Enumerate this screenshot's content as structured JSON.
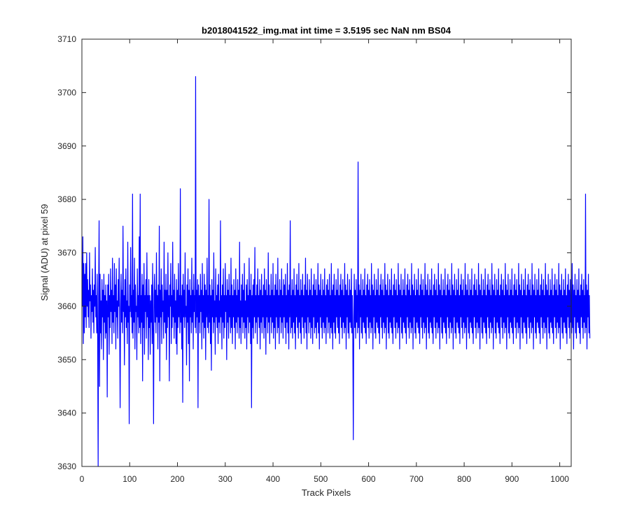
{
  "chart_data": {
    "type": "line",
    "title": "b2018041522_img.mat int time = 3.5195 sec  NaN nm BS04",
    "xlabel": "Track Pixels",
    "ylabel": "Signal (ADU) at pixel 59",
    "xlim": [
      0,
      1024
    ],
    "ylim": [
      3630,
      3710
    ],
    "xticks": [
      0,
      100,
      200,
      300,
      400,
      500,
      600,
      700,
      800,
      900,
      1000
    ],
    "yticks": [
      3630,
      3640,
      3650,
      3660,
      3670,
      3680,
      3690,
      3700,
      3710
    ],
    "grid": false,
    "series": [
      {
        "color": "#0000ff",
        "x_start": 1,
        "x_step": 1,
        "count": 1024,
        "values": [
          3660,
          3673,
          3653,
          3668,
          3655,
          3666,
          3658,
          3668,
          3656,
          3670,
          3660,
          3665,
          3658,
          3663,
          3656,
          3670,
          3661,
          3664,
          3654,
          3662,
          3659,
          3667,
          3657,
          3663,
          3655,
          3664,
          3660,
          3671,
          3658,
          3662,
          3655,
          3666,
          3654,
          3630,
          3662,
          3676,
          3645,
          3666,
          3655,
          3661,
          3652,
          3665,
          3658,
          3663,
          3650,
          3666,
          3657,
          3662,
          3654,
          3664,
          3655,
          3661,
          3643,
          3664,
          3658,
          3666,
          3651,
          3662,
          3656,
          3667,
          3659,
          3663,
          3653,
          3669,
          3657,
          3662,
          3655,
          3668,
          3659,
          3664,
          3652,
          3667,
          3658,
          3661,
          3654,
          3665,
          3660,
          3669,
          3656,
          3641,
          3660,
          3666,
          3657,
          3663,
          3655,
          3675,
          3659,
          3662,
          3649,
          3665,
          3658,
          3667,
          3656,
          3661,
          3653,
          3672,
          3657,
          3660,
          3638,
          3664,
          3659,
          3671,
          3658,
          3662,
          3655,
          3681,
          3654,
          3663,
          3657,
          3669,
          3652,
          3664,
          3659,
          3660,
          3650,
          3667,
          3658,
          3662,
          3655,
          3673,
          3656,
          3681,
          3653,
          3662,
          3657,
          3666,
          3646,
          3664,
          3656,
          3668,
          3651,
          3662,
          3659,
          3665,
          3654,
          3670,
          3658,
          3662,
          3650,
          3665,
          3656,
          3662,
          3651,
          3661,
          3657,
          3664,
          3653,
          3668,
          3655,
          3638,
          3662,
          3666,
          3657,
          3663,
          3655,
          3670,
          3658,
          3662,
          3652,
          3664,
          3657,
          3675,
          3646,
          3663,
          3658,
          3667,
          3653,
          3664,
          3659,
          3661,
          3654,
          3672,
          3657,
          3663,
          3655,
          3666,
          3650,
          3663,
          3656,
          3670,
          3658,
          3662,
          3646,
          3664,
          3660,
          3668,
          3653,
          3662,
          3656,
          3672,
          3658,
          3663,
          3654,
          3666,
          3657,
          3661,
          3653,
          3665,
          3651,
          3663,
          3656,
          3668,
          3658,
          3662,
          3655,
          3682,
          3657,
          3662,
          3652,
          3664,
          3642,
          3666,
          3658,
          3663,
          3656,
          3670,
          3658,
          3660,
          3649,
          3664,
          3657,
          3667,
          3653,
          3663,
          3646,
          3665,
          3658,
          3662,
          3655,
          3669,
          3657,
          3663,
          3652,
          3666,
          3659,
          3662,
          3656,
          3703,
          3655,
          3663,
          3658,
          3665,
          3641,
          3664,
          3657,
          3662,
          3655,
          3666,
          3659,
          3663,
          3652,
          3668,
          3657,
          3662,
          3654,
          3666,
          3656,
          3664,
          3650,
          3663,
          3658,
          3669,
          3656,
          3662,
          3655,
          3680,
          3657,
          3664,
          3653,
          3662,
          3648,
          3665,
          3658,
          3663,
          3655,
          3670,
          3657,
          3661,
          3651,
          3667,
          3658,
          3662,
          3656,
          3664,
          3653,
          3666,
          3657,
          3661,
          3655,
          3676,
          3658,
          3662,
          3652,
          3664,
          3657,
          3667,
          3654,
          3662,
          3656,
          3668,
          3659,
          3662,
          3650,
          3665,
          3657,
          3663,
          3654,
          3666,
          3658,
          3662,
          3655,
          3669,
          3656,
          3664,
          3653,
          3662,
          3658,
          3665,
          3656,
          3663,
          3652,
          3667,
          3657,
          3662,
          3655,
          3665,
          3658,
          3663,
          3654,
          3672,
          3656,
          3661,
          3653,
          3664,
          3658,
          3666,
          3655,
          3663,
          3657,
          3668,
          3654,
          3661,
          3656,
          3664,
          3652,
          3665,
          3658,
          3662,
          3655,
          3669,
          3657,
          3663,
          3653,
          3666,
          3641,
          3662,
          3656,
          3664,
          3654,
          3665,
          3658,
          3671,
          3655,
          3662,
          3657,
          3664,
          3653,
          3667,
          3658,
          3662,
          3656,
          3665,
          3652,
          3663,
          3657,
          3666,
          3655,
          3662,
          3658,
          3664,
          3654,
          3667,
          3656,
          3663,
          3651,
          3665,
          3658,
          3662,
          3655,
          3670,
          3657,
          3664,
          3653,
          3662,
          3658,
          3666,
          3655,
          3663,
          3657,
          3668,
          3654,
          3662,
          3656,
          3664,
          3652,
          3666,
          3658,
          3663,
          3655,
          3669,
          3656,
          3662,
          3653,
          3665,
          3658,
          3663,
          3655,
          3667,
          3657,
          3662,
          3654,
          3665,
          3658,
          3664,
          3656,
          3666,
          3653,
          3662,
          3657,
          3668,
          3655,
          3663,
          3652,
          3664,
          3658,
          3676,
          3655,
          3662,
          3656,
          3665,
          3654,
          3663,
          3657,
          3667,
          3655,
          3662,
          3652,
          3664,
          3658,
          3666,
          3656,
          3663,
          3654,
          3668,
          3657,
          3662,
          3655,
          3665,
          3653,
          3663,
          3658,
          3666,
          3656,
          3662,
          3654,
          3664,
          3657,
          3669,
          3655,
          3663,
          3652,
          3666,
          3658,
          3662,
          3655,
          3665,
          3657,
          3663,
          3654,
          3667,
          3656,
          3662,
          3653,
          3664,
          3658,
          3666,
          3655,
          3663,
          3656,
          3665,
          3654,
          3662,
          3657,
          3668,
          3655,
          3664,
          3652,
          3663,
          3658,
          3666,
          3656,
          3662,
          3654,
          3665,
          3657,
          3663,
          3655,
          3667,
          3656,
          3662,
          3653,
          3664,
          3658,
          3665,
          3655,
          3663,
          3657,
          3666,
          3654,
          3662,
          3656,
          3668,
          3655,
          3663,
          3652,
          3664,
          3657,
          3666,
          3655,
          3662,
          3654,
          3665,
          3658,
          3663,
          3656,
          3667,
          3655,
          3662,
          3653,
          3664,
          3658,
          3666,
          3656,
          3663,
          3654,
          3665,
          3657,
          3662,
          3655,
          3668,
          3656,
          3664,
          3652,
          3663,
          3658,
          3666,
          3655,
          3662,
          3654,
          3665,
          3657,
          3663,
          3656,
          3667,
          3655,
          3662,
          3653,
          3635,
          3658,
          3666,
          3656,
          3663,
          3654,
          3665,
          3657,
          3662,
          3655,
          3687,
          3656,
          3664,
          3652,
          3663,
          3658,
          3666,
          3655,
          3662,
          3654,
          3665,
          3657,
          3663,
          3656,
          3667,
          3655,
          3662,
          3653,
          3664,
          3658,
          3666,
          3656,
          3663,
          3654,
          3665,
          3657,
          3662,
          3655,
          3668,
          3656,
          3664,
          3652,
          3663,
          3658,
          3666,
          3655,
          3662,
          3654,
          3665,
          3657,
          3663,
          3656,
          3667,
          3655,
          3662,
          3653,
          3664,
          3658,
          3666,
          3656,
          3663,
          3654,
          3665,
          3657,
          3662,
          3655,
          3668,
          3656,
          3664,
          3652,
          3663,
          3658,
          3666,
          3655,
          3662,
          3654,
          3665,
          3657,
          3663,
          3656,
          3667,
          3655,
          3662,
          3653,
          3664,
          3658,
          3666,
          3656,
          3663,
          3654,
          3665,
          3657,
          3662,
          3655,
          3668,
          3656,
          3664,
          3652,
          3663,
          3658,
          3666,
          3655,
          3662,
          3654,
          3665,
          3657,
          3663,
          3656,
          3667,
          3655,
          3662,
          3653,
          3664,
          3658,
          3666,
          3656,
          3663,
          3654,
          3665,
          3657,
          3662,
          3655,
          3668,
          3656,
          3664,
          3652,
          3663,
          3658,
          3666,
          3655,
          3662,
          3654,
          3665,
          3657,
          3663,
          3656,
          3667,
          3655,
          3662,
          3653,
          3664,
          3658,
          3666,
          3656,
          3663,
          3654,
          3665,
          3657,
          3662,
          3655,
          3668,
          3656,
          3664,
          3652,
          3663,
          3658,
          3666,
          3655,
          3662,
          3654,
          3665,
          3657,
          3663,
          3656,
          3667,
          3655,
          3662,
          3653,
          3664,
          3658,
          3666,
          3656,
          3663,
          3654,
          3665,
          3657,
          3662,
          3655,
          3668,
          3656,
          3664,
          3652,
          3663,
          3658,
          3666,
          3655,
          3662,
          3654,
          3665,
          3657,
          3663,
          3656,
          3667,
          3655,
          3662,
          3653,
          3664,
          3658,
          3666,
          3656,
          3663,
          3654,
          3665,
          3657,
          3662,
          3655,
          3668,
          3656,
          3664,
          3652,
          3663,
          3658,
          3666,
          3655,
          3662,
          3654,
          3665,
          3657,
          3663,
          3656,
          3667,
          3655,
          3662,
          3653,
          3664,
          3658,
          3666,
          3656,
          3663,
          3654,
          3665,
          3657,
          3662,
          3655,
          3668,
          3656,
          3664,
          3652,
          3663,
          3658,
          3666,
          3655,
          3662,
          3654,
          3665,
          3657,
          3663,
          3656,
          3667,
          3655,
          3662,
          3653,
          3664,
          3658,
          3666,
          3656,
          3663,
          3654,
          3665,
          3657,
          3662,
          3655,
          3668,
          3656,
          3664,
          3652,
          3663,
          3658,
          3666,
          3655,
          3662,
          3654,
          3665,
          3657,
          3663,
          3656,
          3667,
          3655,
          3662,
          3653,
          3664,
          3658,
          3666,
          3656,
          3663,
          3654,
          3665,
          3657,
          3662,
          3655,
          3668,
          3656,
          3664,
          3652,
          3663,
          3658,
          3666,
          3655,
          3662,
          3654,
          3665,
          3657,
          3663,
          3656,
          3667,
          3655,
          3662,
          3653,
          3664,
          3658,
          3666,
          3656,
          3663,
          3654,
          3665,
          3657,
          3662,
          3655,
          3668,
          3656,
          3664,
          3652,
          3663,
          3658,
          3666,
          3655,
          3662,
          3654,
          3665,
          3657,
          3663,
          3656,
          3667,
          3655,
          3662,
          3653,
          3664,
          3658,
          3666,
          3656,
          3663,
          3654,
          3665,
          3657,
          3662,
          3655,
          3668,
          3656,
          3664,
          3652,
          3663,
          3658,
          3666,
          3655,
          3662,
          3654,
          3665,
          3657,
          3663,
          3656,
          3667,
          3655,
          3662,
          3653,
          3664,
          3658,
          3666,
          3656,
          3663,
          3654,
          3665,
          3657,
          3662,
          3655,
          3668,
          3656,
          3664,
          3652,
          3663,
          3658,
          3666,
          3655,
          3662,
          3654,
          3665,
          3657,
          3663,
          3656,
          3667,
          3655,
          3662,
          3653,
          3664,
          3658,
          3666,
          3656,
          3663,
          3654,
          3665,
          3657,
          3662,
          3655,
          3668,
          3656,
          3664,
          3652,
          3663,
          3658,
          3666,
          3655,
          3662,
          3654,
          3665,
          3657,
          3663,
          3656,
          3667,
          3655,
          3662,
          3653,
          3664,
          3658,
          3666,
          3656,
          3663,
          3654,
          3665,
          3657,
          3662,
          3655,
          3668,
          3656,
          3664,
          3652,
          3663,
          3658,
          3666,
          3655,
          3662,
          3654,
          3665,
          3657,
          3663,
          3656,
          3667,
          3655,
          3662,
          3653,
          3664,
          3658,
          3666,
          3656,
          3663,
          3654,
          3665,
          3657,
          3662,
          3655,
          3668,
          3656,
          3664,
          3652,
          3663,
          3658,
          3666,
          3655,
          3662,
          3654,
          3665,
          3657,
          3663,
          3656,
          3667,
          3655,
          3662,
          3653,
          3664,
          3658,
          3666,
          3656,
          3663,
          3654,
          3665,
          3657,
          3662,
          3655,
          3681,
          3656,
          3664,
          3652,
          3663,
          3658,
          3666,
          3655,
          3662,
          3654
        ]
      }
    ]
  }
}
